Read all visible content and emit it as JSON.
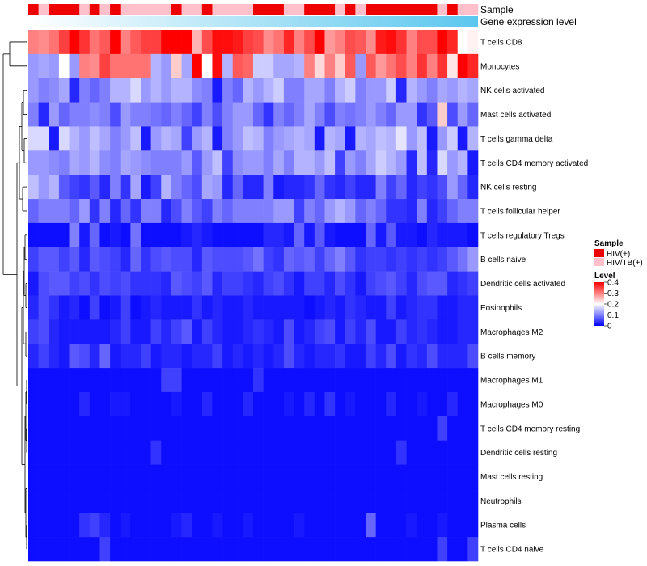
{
  "chart_data": {
    "type": "heatmap",
    "annotation_labels": {
      "sample": "Sample",
      "gene_expression": "Gene expression level"
    },
    "rows": [
      "T cells CD8",
      "Monocytes",
      "NK cells activated",
      "Mast cells activated",
      "T cells gamma delta",
      "T cells CD4 memory activated",
      "NK cells resting",
      "T cells follicular helper",
      "T cells regulatory  Tregs",
      "B cells naive",
      "Dendritic cells activated",
      "Eosinophils",
      "Macrophages M2",
      "B cells memory",
      "Macrophages M1",
      "Macrophages M0",
      "T cells CD4 memory resting",
      "Dendritic cells resting",
      "Mast cells resting",
      "Neutrophils",
      "Plasma cells",
      "T cells CD4 naive"
    ],
    "n_samples": 44,
    "sample_groups": [
      "HIV(+)",
      "HIV/TB(+)",
      "HIV(+)",
      "HIV(+)",
      "HIV(+)",
      "HIV/TB(+)",
      "HIV(+)",
      "HIV/TB(+)",
      "HIV(+)",
      "HIV/TB(+)",
      "HIV/TB(+)",
      "HIV/TB(+)",
      "HIV/TB(+)",
      "HIV/TB(+)",
      "HIV(+)",
      "HIV/TB(+)",
      "HIV/TB(+)",
      "HIV(+)",
      "HIV/TB(+)",
      "HIV/TB(+)",
      "HIV/TB(+)",
      "HIV/TB(+)",
      "HIV(+)",
      "HIV(+)",
      "HIV(+)",
      "HIV/TB(+)",
      "HIV/TB(+)",
      "HIV(+)",
      "HIV(+)",
      "HIV(+)",
      "HIV/TB(+)",
      "HIV(+)",
      "HIV/TB(+)",
      "HIV(+)",
      "HIV(+)",
      "HIV(+)",
      "HIV(+)",
      "HIV(+)",
      "HIV(+)",
      "HIV(+)",
      "HIV/TB(+)",
      "HIV(+)",
      "HIV/TB(+)",
      "HIV/TB(+)"
    ],
    "gene_expression_gradient": [
      "#ffffff",
      "#5bc7ee"
    ],
    "colorscale": {
      "low": "#0000ff",
      "mid": "#ffffff",
      "high": "#ff0000",
      "min": 0,
      "mid_value": 0.2,
      "max": 0.4
    },
    "values": [
      [
        0.3,
        0.29,
        0.31,
        0.35,
        0.4,
        0.36,
        0.31,
        0.33,
        0.4,
        0.3,
        0.33,
        0.35,
        0.35,
        0.4,
        0.4,
        0.4,
        0.26,
        0.34,
        0.39,
        0.39,
        0.38,
        0.35,
        0.34,
        0.29,
        0.31,
        0.37,
        0.3,
        0.34,
        0.4,
        0.28,
        0.3,
        0.34,
        0.33,
        0.29,
        0.38,
        0.39,
        0.36,
        0.3,
        0.34,
        0.34,
        0.4,
        0.37,
        0.2,
        0.21
      ],
      [
        0.12,
        0.13,
        0.12,
        0.2,
        0.12,
        0.3,
        0.29,
        0.35,
        0.31,
        0.31,
        0.31,
        0.31,
        0.14,
        0.12,
        0.24,
        0.13,
        0.4,
        0.2,
        0.39,
        0.14,
        0.33,
        0.32,
        0.16,
        0.16,
        0.13,
        0.13,
        0.14,
        0.3,
        0.23,
        0.3,
        0.24,
        0.33,
        0.12,
        0.33,
        0.28,
        0.31,
        0.34,
        0.3,
        0.36,
        0.3,
        0.36,
        0.22,
        0.4,
        0.37
      ],
      [
        0.12,
        0.1,
        0.11,
        0.13,
        0.03,
        0.1,
        0.08,
        0.1,
        0.14,
        0.14,
        0.17,
        0.12,
        0.14,
        0.12,
        0.14,
        0.14,
        0.11,
        0.1,
        0.02,
        0.1,
        0.08,
        0.14,
        0.12,
        0.14,
        0.16,
        0.1,
        0.1,
        0.13,
        0.13,
        0.1,
        0.14,
        0.16,
        0.1,
        0.12,
        0.12,
        0.16,
        0.03,
        0.14,
        0.12,
        0.1,
        0.13,
        0.12,
        0.14,
        0.13
      ],
      [
        0.1,
        0.03,
        0.12,
        0.08,
        0.1,
        0.1,
        0.11,
        0.1,
        0.06,
        0.12,
        0.1,
        0.1,
        0.09,
        0.08,
        0.1,
        0.08,
        0.05,
        0.1,
        0.06,
        0.1,
        0.12,
        0.12,
        0.08,
        0.04,
        0.1,
        0.08,
        0.1,
        0.13,
        0.1,
        0.06,
        0.1,
        0.09,
        0.1,
        0.12,
        0.1,
        0.08,
        0.12,
        0.12,
        0.04,
        0.07,
        0.24,
        0.06,
        0.12,
        0.08
      ],
      [
        0.17,
        0.17,
        0.02,
        0.17,
        0.14,
        0.12,
        0.15,
        0.13,
        0.1,
        0.12,
        0.15,
        0.02,
        0.12,
        0.14,
        0.13,
        0.05,
        0.12,
        0.14,
        0.02,
        0.1,
        0.12,
        0.15,
        0.14,
        0.1,
        0.12,
        0.13,
        0.14,
        0.13,
        0.02,
        0.14,
        0.13,
        0.02,
        0.14,
        0.13,
        0.15,
        0.14,
        0.18,
        0.12,
        0.15,
        0.02,
        0.12,
        0.16,
        0.02,
        0.14
      ],
      [
        0.12,
        0.12,
        0.11,
        0.1,
        0.13,
        0.12,
        0.14,
        0.11,
        0.1,
        0.13,
        0.12,
        0.11,
        0.1,
        0.1,
        0.1,
        0.12,
        0.07,
        0.12,
        0.15,
        0.05,
        0.11,
        0.12,
        0.12,
        0.1,
        0.13,
        0.1,
        0.14,
        0.14,
        0.12,
        0.15,
        0.05,
        0.12,
        0.1,
        0.13,
        0.16,
        0.14,
        0.12,
        0.03,
        0.15,
        0.03,
        0.17,
        0.12,
        0.14,
        0.02
      ],
      [
        0.15,
        0.12,
        0.14,
        0.07,
        0.05,
        0.04,
        0.07,
        0.03,
        0.1,
        0.04,
        0.13,
        0.02,
        0.05,
        0.14,
        0.1,
        0.08,
        0.06,
        0.13,
        0.12,
        0.03,
        0.08,
        0.03,
        0.03,
        0.1,
        0.02,
        0.03,
        0.03,
        0.04,
        0.08,
        0.04,
        0.03,
        0.05,
        0.03,
        0.03,
        0.1,
        0.05,
        0.08,
        0.03,
        0.05,
        0.04,
        0.06,
        0.12,
        0.08,
        0.03
      ],
      [
        0.08,
        0.1,
        0.1,
        0.1,
        0.08,
        0.12,
        0.04,
        0.1,
        0.03,
        0.08,
        0.04,
        0.1,
        0.1,
        0.03,
        0.06,
        0.1,
        0.07,
        0.05,
        0.1,
        0.08,
        0.1,
        0.1,
        0.1,
        0.1,
        0.12,
        0.12,
        0.05,
        0.1,
        0.08,
        0.12,
        0.14,
        0.12,
        0.08,
        0.1,
        0.08,
        0.04,
        0.04,
        0.03,
        0.1,
        0.03,
        0.05,
        0.08,
        0.1,
        0.1
      ],
      [
        0.01,
        0.01,
        0.01,
        0.01,
        0.1,
        0.02,
        0.08,
        0.01,
        0.02,
        0.01,
        0.09,
        0.01,
        0.01,
        0.01,
        0.01,
        0.02,
        0.03,
        0.02,
        0.01,
        0.01,
        0.01,
        0.01,
        0.01,
        0.03,
        0.03,
        0.02,
        0.08,
        0.02,
        0.07,
        0.02,
        0.01,
        0.01,
        0.01,
        0.08,
        0.02,
        0.07,
        0.02,
        0.02,
        0.01,
        0.03,
        0.02,
        0.02,
        0.02,
        0.01
      ],
      [
        0.05,
        0.07,
        0.07,
        0.05,
        0.07,
        0.03,
        0.07,
        0.06,
        0.05,
        0.03,
        0.08,
        0.04,
        0.06,
        0.07,
        0.06,
        0.06,
        0.03,
        0.07,
        0.06,
        0.06,
        0.06,
        0.07,
        0.09,
        0.05,
        0.04,
        0.08,
        0.07,
        0.08,
        0.05,
        0.08,
        0.1,
        0.07,
        0.04,
        0.05,
        0.05,
        0.04,
        0.05,
        0.04,
        0.05,
        0.04,
        0.05,
        0.07,
        0.09,
        0.12
      ],
      [
        0.02,
        0.06,
        0.07,
        0.07,
        0.05,
        0.06,
        0.04,
        0.06,
        0.05,
        0.06,
        0.04,
        0.04,
        0.04,
        0.03,
        0.07,
        0.06,
        0.05,
        0.07,
        0.03,
        0.05,
        0.05,
        0.04,
        0.03,
        0.05,
        0.06,
        0.04,
        0.02,
        0.05,
        0.05,
        0.03,
        0.06,
        0.04,
        0.02,
        0.05,
        0.06,
        0.07,
        0.05,
        0.03,
        0.06,
        0.07,
        0.07,
        0.03,
        0.04,
        0.05
      ],
      [
        0.03,
        0.06,
        0.04,
        0.02,
        0.03,
        0.01,
        0.05,
        0.01,
        0.02,
        0.05,
        0.01,
        0.02,
        0.03,
        0.02,
        0.02,
        0.02,
        0.04,
        0.02,
        0.03,
        0.02,
        0.02,
        0.03,
        0.02,
        0.02,
        0.02,
        0.02,
        0.02,
        0.01,
        0.02,
        0.03,
        0.02,
        0.04,
        0.03,
        0.02,
        0.02,
        0.05,
        0.02,
        0.03,
        0.04,
        0.04,
        0.02,
        0.02,
        0.03,
        0.03
      ],
      [
        0.05,
        0.06,
        0.03,
        0.02,
        0.02,
        0.02,
        0.02,
        0.02,
        0.03,
        0.05,
        0.02,
        0.02,
        0.05,
        0.03,
        0.05,
        0.07,
        0.02,
        0.05,
        0.03,
        0.02,
        0.02,
        0.03,
        0.04,
        0.03,
        0.02,
        0.06,
        0.02,
        0.03,
        0.05,
        0.06,
        0.02,
        0.05,
        0.03,
        0.06,
        0.02,
        0.02,
        0.05,
        0.03,
        0.04,
        0.03,
        0.02,
        0.02,
        0.03,
        0.03
      ],
      [
        0.03,
        0.05,
        0.03,
        0.02,
        0.07,
        0.06,
        0.03,
        0.08,
        0.02,
        0.03,
        0.03,
        0.05,
        0.02,
        0.03,
        0.03,
        0.02,
        0.03,
        0.03,
        0.05,
        0.02,
        0.03,
        0.02,
        0.03,
        0.02,
        0.03,
        0.06,
        0.03,
        0.02,
        0.03,
        0.03,
        0.04,
        0.02,
        0.02,
        0.05,
        0.03,
        0.06,
        0.02,
        0.04,
        0.03,
        0.06,
        0.03,
        0.03,
        0.03,
        0.06
      ],
      [
        0.01,
        0.01,
        0.01,
        0.01,
        0.01,
        0.01,
        0.01,
        0.01,
        0.01,
        0.01,
        0.01,
        0.01,
        0.01,
        0.05,
        0.05,
        0.01,
        0.01,
        0.01,
        0.01,
        0.01,
        0.01,
        0.01,
        0.04,
        0.01,
        0.01,
        0.01,
        0.01,
        0.01,
        0.01,
        0.01,
        0.01,
        0.01,
        0.01,
        0.01,
        0.01,
        0.01,
        0.01,
        0.01,
        0.01,
        0.01,
        0.01,
        0.01,
        0.01,
        0.01
      ],
      [
        0.01,
        0.01,
        0.01,
        0.01,
        0.01,
        0.03,
        0.01,
        0.01,
        0.02,
        0.02,
        0.01,
        0.01,
        0.01,
        0.01,
        0.02,
        0.01,
        0.01,
        0.03,
        0.01,
        0.01,
        0.01,
        0.03,
        0.01,
        0.01,
        0.01,
        0.02,
        0.01,
        0.03,
        0.01,
        0.04,
        0.01,
        0.02,
        0.01,
        0.01,
        0.01,
        0.03,
        0.01,
        0.01,
        0.02,
        0.01,
        0.01,
        0.03,
        0.01,
        0.01
      ],
      [
        0.01,
        0.01,
        0.01,
        0.01,
        0.01,
        0.01,
        0.01,
        0.01,
        0.01,
        0.01,
        0.01,
        0.01,
        0.01,
        0.01,
        0.01,
        0.01,
        0.01,
        0.01,
        0.01,
        0.01,
        0.01,
        0.01,
        0.01,
        0.01,
        0.01,
        0.01,
        0.01,
        0.01,
        0.01,
        0.01,
        0.01,
        0.01,
        0.01,
        0.01,
        0.01,
        0.01,
        0.01,
        0.01,
        0.01,
        0.01,
        0.05,
        0.01,
        0.01,
        0.01
      ],
      [
        0.01,
        0.01,
        0.01,
        0.01,
        0.01,
        0.01,
        0.01,
        0.01,
        0.01,
        0.01,
        0.01,
        0.01,
        0.04,
        0.01,
        0.01,
        0.01,
        0.01,
        0.01,
        0.01,
        0.01,
        0.01,
        0.01,
        0.01,
        0.01,
        0.01,
        0.01,
        0.01,
        0.01,
        0.01,
        0.01,
        0.01,
        0.01,
        0.01,
        0.01,
        0.01,
        0.01,
        0.04,
        0.01,
        0.01,
        0.01,
        0.01,
        0.01,
        0.01,
        0.01
      ],
      [
        0.01,
        0.01,
        0.01,
        0.01,
        0.01,
        0.01,
        0.01,
        0.01,
        0.01,
        0.01,
        0.01,
        0.01,
        0.01,
        0.01,
        0.01,
        0.01,
        0.01,
        0.01,
        0.01,
        0.01,
        0.01,
        0.01,
        0.01,
        0.01,
        0.01,
        0.01,
        0.01,
        0.01,
        0.01,
        0.01,
        0.01,
        0.01,
        0.01,
        0.01,
        0.01,
        0.01,
        0.01,
        0.01,
        0.01,
        0.01,
        0.01,
        0.01,
        0.01,
        0.01
      ],
      [
        0.01,
        0.01,
        0.01,
        0.01,
        0.01,
        0.01,
        0.01,
        0.01,
        0.01,
        0.01,
        0.01,
        0.01,
        0.01,
        0.01,
        0.01,
        0.01,
        0.01,
        0.01,
        0.01,
        0.01,
        0.01,
        0.01,
        0.01,
        0.01,
        0.01,
        0.01,
        0.01,
        0.01,
        0.01,
        0.01,
        0.01,
        0.01,
        0.01,
        0.01,
        0.01,
        0.01,
        0.01,
        0.01,
        0.01,
        0.01,
        0.01,
        0.01,
        0.01,
        0.01
      ],
      [
        0.01,
        0.01,
        0.01,
        0.01,
        0.01,
        0.04,
        0.05,
        0.03,
        0.01,
        0.02,
        0.01,
        0.01,
        0.01,
        0.01,
        0.02,
        0.03,
        0.01,
        0.01,
        0.02,
        0.01,
        0.01,
        0.02,
        0.01,
        0.01,
        0.01,
        0.01,
        0.02,
        0.01,
        0.01,
        0.01,
        0.01,
        0.01,
        0.01,
        0.08,
        0.01,
        0.01,
        0.01,
        0.02,
        0.01,
        0.01,
        0.02,
        0.01,
        0.01,
        0.01
      ],
      [
        0.01,
        0.01,
        0.01,
        0.01,
        0.01,
        0.01,
        0.01,
        0.05,
        0.01,
        0.01,
        0.01,
        0.01,
        0.01,
        0.01,
        0.01,
        0.01,
        0.01,
        0.01,
        0.01,
        0.01,
        0.01,
        0.01,
        0.01,
        0.01,
        0.01,
        0.01,
        0.01,
        0.01,
        0.01,
        0.01,
        0.01,
        0.01,
        0.01,
        0.01,
        0.01,
        0.01,
        0.01,
        0.01,
        0.01,
        0.01,
        0.05,
        0.01,
        0.01,
        0.05
      ]
    ],
    "legend": {
      "sample_title": "Sample",
      "sample_items": [
        {
          "label": "HIV(+)",
          "color": "#ee0000"
        },
        {
          "label": "HIV/TB(+)",
          "color": "#ffc0cb"
        }
      ],
      "level_title": "Level",
      "level_ticks": [
        {
          "label": "0.4",
          "value": 0.4
        },
        {
          "label": "0.3",
          "value": 0.3
        },
        {
          "label": "0.2",
          "value": 0.2
        },
        {
          "label": "0.1",
          "value": 0.1
        },
        {
          "label": "0",
          "value": 0
        }
      ]
    },
    "dendrogram": "row clustering tree on left"
  }
}
